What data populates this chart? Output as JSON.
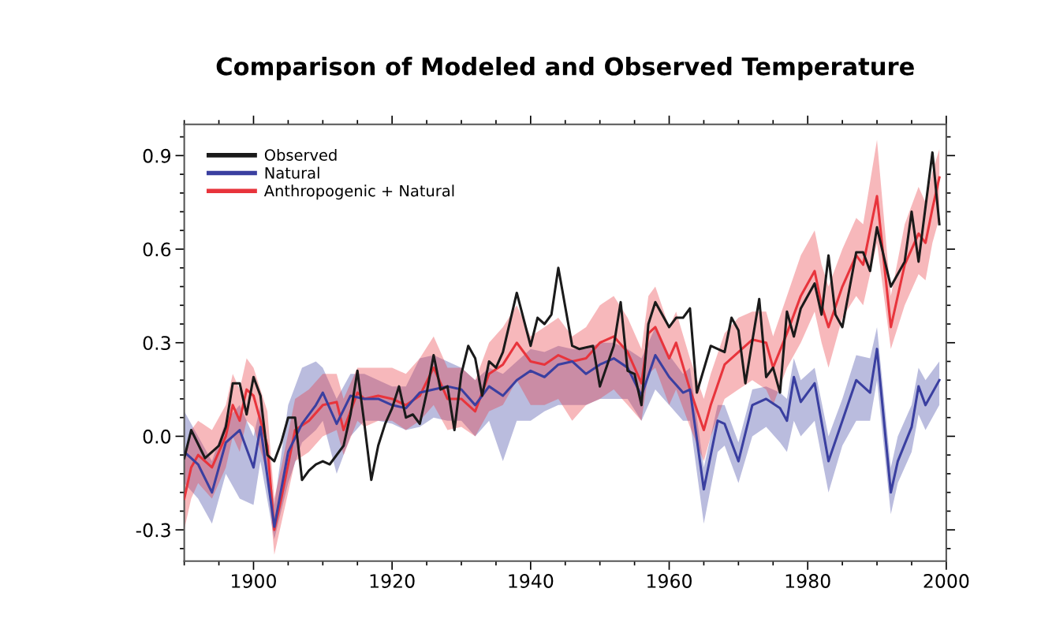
{
  "chart_data": {
    "type": "line",
    "title": "Comparison of Modeled and Observed Temperature",
    "xlim": [
      1890,
      2000
    ],
    "xticks": [
      1900,
      1920,
      1940,
      1960,
      1980,
      2000
    ],
    "ylim": [
      -0.4,
      1.0
    ],
    "yticks": [
      {
        "value": -0.3,
        "label": "-0.3"
      },
      {
        "value": 0.0,
        "label": "0.0"
      },
      {
        "value": 0.3,
        "label": "0.3"
      },
      {
        "value": 0.6,
        "label": "0.6"
      },
      {
        "value": 0.9,
        "label": "0.9"
      }
    ],
    "legend": "top left",
    "grid": false,
    "line_style": "solid",
    "marker": "none",
    "series": [
      {
        "name": "Observed",
        "color": "#1a1a1a",
        "x": [
          1890,
          1891,
          1893,
          1895,
          1896,
          1897,
          1898,
          1899,
          1900,
          1901,
          1902,
          1903,
          1904,
          1905,
          1906,
          1907,
          1908,
          1909,
          1910,
          1911,
          1913,
          1914,
          1915,
          1916,
          1917,
          1918,
          1919,
          1920,
          1921,
          1922,
          1923,
          1924,
          1925,
          1926,
          1927,
          1928,
          1929,
          1930,
          1931,
          1932,
          1933,
          1934,
          1935,
          1936,
          1938,
          1940,
          1941,
          1942,
          1943,
          1944,
          1946,
          1947,
          1949,
          1950,
          1952,
          1953,
          1954,
          1955,
          1956,
          1957,
          1958,
          1960,
          1961,
          1962,
          1963,
          1964,
          1966,
          1968,
          1969,
          1970,
          1971,
          1973,
          1974,
          1975,
          1976,
          1977,
          1978,
          1979,
          1981,
          1982,
          1983,
          1984,
          1985,
          1987,
          1988,
          1989,
          1990,
          1992,
          1994,
          1995,
          1996,
          1998,
          1999
        ],
        "values": [
          -0.07,
          0.02,
          -0.07,
          -0.03,
          0.03,
          0.17,
          0.17,
          0.07,
          0.19,
          0.13,
          -0.06,
          -0.08,
          -0.02,
          0.06,
          0.06,
          -0.14,
          -0.11,
          -0.09,
          -0.08,
          -0.09,
          -0.03,
          0.07,
          0.21,
          0.04,
          -0.14,
          -0.03,
          0.04,
          0.09,
          0.16,
          0.06,
          0.07,
          0.04,
          0.14,
          0.26,
          0.15,
          0.16,
          0.02,
          0.2,
          0.29,
          0.25,
          0.13,
          0.24,
          0.22,
          0.27,
          0.46,
          0.29,
          0.38,
          0.36,
          0.39,
          0.54,
          0.29,
          0.28,
          0.29,
          0.16,
          0.29,
          0.43,
          0.21,
          0.2,
          0.1,
          0.36,
          0.43,
          0.35,
          0.38,
          0.38,
          0.41,
          0.14,
          0.29,
          0.27,
          0.38,
          0.34,
          0.17,
          0.44,
          0.19,
          0.22,
          0.14,
          0.4,
          0.32,
          0.41,
          0.49,
          0.39,
          0.58,
          0.39,
          0.35,
          0.59,
          0.59,
          0.53,
          0.67,
          0.48,
          0.56,
          0.72,
          0.56,
          0.91,
          0.68
        ]
      },
      {
        "name": "Natural",
        "color": "#3a3fa0",
        "x": [
          1890,
          1892,
          1894,
          1896,
          1898,
          1900,
          1901,
          1903,
          1905,
          1907,
          1909,
          1910,
          1912,
          1914,
          1916,
          1918,
          1920,
          1922,
          1924,
          1926,
          1928,
          1930,
          1932,
          1934,
          1936,
          1938,
          1940,
          1942,
          1944,
          1946,
          1948,
          1950,
          1952,
          1954,
          1956,
          1958,
          1960,
          1962,
          1963,
          1965,
          1967,
          1968,
          1970,
          1972,
          1974,
          1976,
          1977,
          1978,
          1979,
          1981,
          1983,
          1985,
          1987,
          1989,
          1990,
          1992,
          1993,
          1995,
          1996,
          1997,
          1999
        ],
        "values": [
          -0.05,
          -0.09,
          -0.18,
          -0.02,
          0.02,
          -0.1,
          0.03,
          -0.29,
          -0.05,
          0.04,
          0.1,
          0.14,
          0.04,
          0.13,
          0.12,
          0.12,
          0.1,
          0.09,
          0.14,
          0.15,
          0.16,
          0.15,
          0.1,
          0.16,
          0.13,
          0.18,
          0.21,
          0.19,
          0.23,
          0.24,
          0.2,
          0.23,
          0.25,
          0.22,
          0.13,
          0.26,
          0.19,
          0.14,
          0.15,
          -0.17,
          0.05,
          0.04,
          -0.08,
          0.1,
          0.12,
          0.09,
          0.05,
          0.19,
          0.11,
          0.17,
          -0.08,
          0.05,
          0.18,
          0.14,
          0.28,
          -0.18,
          -0.08,
          0.03,
          0.16,
          0.1,
          0.18
        ],
        "lower": [
          -0.15,
          -0.2,
          -0.28,
          -0.12,
          -0.2,
          -0.22,
          -0.08,
          -0.33,
          -0.15,
          -0.02,
          0.02,
          0.05,
          -0.12,
          0.0,
          0.05,
          0.05,
          0.04,
          0.02,
          0.03,
          0.06,
          0.05,
          0.05,
          0.0,
          0.05,
          -0.08,
          0.05,
          0.05,
          0.08,
          0.1,
          0.1,
          0.1,
          0.12,
          0.12,
          0.12,
          0.05,
          0.15,
          0.1,
          0.05,
          0.05,
          -0.28,
          -0.05,
          -0.03,
          -0.15,
          0.0,
          0.03,
          -0.02,
          -0.05,
          0.05,
          0.0,
          0.05,
          -0.18,
          -0.03,
          0.05,
          0.05,
          0.18,
          -0.25,
          -0.15,
          -0.05,
          0.07,
          0.02,
          0.1
        ],
        "upper": [
          0.08,
          0.0,
          -0.08,
          0.05,
          0.1,
          0.0,
          0.1,
          -0.22,
          0.1,
          0.22,
          0.24,
          0.22,
          0.12,
          0.2,
          0.2,
          0.18,
          0.16,
          0.16,
          0.25,
          0.26,
          0.24,
          0.22,
          0.18,
          0.22,
          0.2,
          0.24,
          0.28,
          0.27,
          0.29,
          0.28,
          0.28,
          0.3,
          0.3,
          0.28,
          0.25,
          0.35,
          0.26,
          0.2,
          0.22,
          -0.1,
          0.1,
          0.1,
          -0.02,
          0.15,
          0.16,
          0.14,
          0.12,
          0.25,
          0.18,
          0.22,
          0.0,
          0.12,
          0.26,
          0.25,
          0.35,
          -0.1,
          0.0,
          0.1,
          0.22,
          0.18,
          0.24
        ]
      },
      {
        "name": "Anthropogenic + Natural",
        "color": "#e8343c",
        "x": [
          1890,
          1891,
          1892,
          1894,
          1896,
          1897,
          1898,
          1899,
          1900,
          1902,
          1903,
          1904,
          1906,
          1908,
          1910,
          1912,
          1913,
          1915,
          1916,
          1918,
          1920,
          1922,
          1924,
          1926,
          1928,
          1930,
          1932,
          1934,
          1936,
          1938,
          1940,
          1942,
          1944,
          1946,
          1948,
          1950,
          1952,
          1954,
          1956,
          1957,
          1958,
          1960,
          1961,
          1963,
          1965,
          1966,
          1968,
          1970,
          1972,
          1974,
          1975,
          1977,
          1979,
          1981,
          1982,
          1983,
          1985,
          1987,
          1988,
          1990,
          1992,
          1994,
          1996,
          1997,
          1998,
          1999
        ],
        "values": [
          -0.2,
          -0.1,
          -0.06,
          -0.1,
          0.0,
          0.1,
          0.05,
          0.15,
          0.13,
          -0.03,
          -0.3,
          -0.2,
          0.02,
          0.05,
          0.1,
          0.11,
          0.02,
          0.14,
          0.12,
          0.13,
          0.12,
          0.1,
          0.13,
          0.22,
          0.12,
          0.12,
          0.08,
          0.2,
          0.23,
          0.3,
          0.24,
          0.23,
          0.26,
          0.24,
          0.25,
          0.3,
          0.32,
          0.27,
          0.17,
          0.33,
          0.35,
          0.25,
          0.3,
          0.15,
          0.02,
          0.1,
          0.23,
          0.27,
          0.31,
          0.3,
          0.22,
          0.33,
          0.45,
          0.53,
          0.42,
          0.35,
          0.48,
          0.58,
          0.55,
          0.77,
          0.35,
          0.55,
          0.65,
          0.62,
          0.73,
          0.83
        ],
        "lower": [
          -0.3,
          -0.2,
          -0.15,
          -0.2,
          -0.1,
          0.0,
          -0.05,
          0.05,
          0.03,
          -0.12,
          -0.38,
          -0.28,
          -0.08,
          -0.05,
          0.0,
          0.02,
          -0.06,
          0.05,
          0.03,
          0.05,
          0.05,
          0.02,
          0.05,
          0.1,
          0.02,
          0.03,
          0.0,
          0.08,
          0.1,
          0.18,
          0.1,
          0.1,
          0.12,
          0.05,
          0.1,
          0.12,
          0.15,
          0.1,
          0.05,
          0.2,
          0.22,
          0.1,
          0.15,
          0.03,
          -0.08,
          0.0,
          0.12,
          0.15,
          0.18,
          0.15,
          0.1,
          0.22,
          0.3,
          0.4,
          0.3,
          0.22,
          0.38,
          0.45,
          0.42,
          0.62,
          0.28,
          0.42,
          0.52,
          0.5,
          0.62,
          0.7
        ],
        "upper": [
          -0.08,
          0.02,
          0.05,
          0.02,
          0.1,
          0.2,
          0.15,
          0.25,
          0.22,
          0.08,
          -0.2,
          -0.1,
          0.12,
          0.15,
          0.2,
          0.2,
          0.12,
          0.22,
          0.22,
          0.22,
          0.22,
          0.2,
          0.25,
          0.32,
          0.22,
          0.22,
          0.18,
          0.3,
          0.35,
          0.42,
          0.32,
          0.35,
          0.38,
          0.32,
          0.35,
          0.42,
          0.45,
          0.38,
          0.28,
          0.45,
          0.48,
          0.35,
          0.4,
          0.25,
          0.12,
          0.2,
          0.33,
          0.38,
          0.4,
          0.4,
          0.32,
          0.45,
          0.58,
          0.66,
          0.55,
          0.48,
          0.6,
          0.7,
          0.68,
          0.95,
          0.45,
          0.68,
          0.8,
          0.75,
          0.85,
          0.92
        ]
      }
    ]
  }
}
